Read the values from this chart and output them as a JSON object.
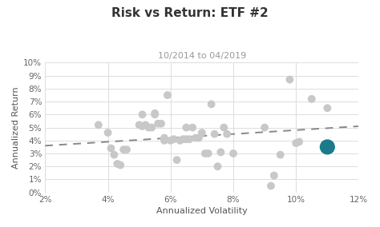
{
  "title": "Risk vs Return: ETF #2",
  "subtitle": "10/2014 to 04/2019",
  "xlabel": "Annualized Volatility",
  "ylabel": "Annualized Return",
  "xlim": [
    0.02,
    0.12
  ],
  "ylim": [
    0.0,
    0.1
  ],
  "xticks": [
    0.02,
    0.04,
    0.06,
    0.08,
    0.1,
    0.12
  ],
  "yticks": [
    0.0,
    0.01,
    0.02,
    0.03,
    0.04,
    0.05,
    0.06,
    0.07,
    0.08,
    0.09,
    0.1
  ],
  "scatter_gray": [
    [
      0.037,
      0.052
    ],
    [
      0.04,
      0.046
    ],
    [
      0.041,
      0.034
    ],
    [
      0.042,
      0.029
    ],
    [
      0.043,
      0.022
    ],
    [
      0.044,
      0.021
    ],
    [
      0.045,
      0.033
    ],
    [
      0.046,
      0.033
    ],
    [
      0.05,
      0.052
    ],
    [
      0.051,
      0.051
    ],
    [
      0.051,
      0.06
    ],
    [
      0.052,
      0.052
    ],
    [
      0.053,
      0.05
    ],
    [
      0.054,
      0.05
    ],
    [
      0.055,
      0.06
    ],
    [
      0.055,
      0.061
    ],
    [
      0.056,
      0.053
    ],
    [
      0.057,
      0.053
    ],
    [
      0.058,
      0.04
    ],
    [
      0.058,
      0.042
    ],
    [
      0.059,
      0.075
    ],
    [
      0.06,
      0.04
    ],
    [
      0.061,
      0.041
    ],
    [
      0.062,
      0.025
    ],
    [
      0.063,
      0.04
    ],
    [
      0.064,
      0.041
    ],
    [
      0.065,
      0.05
    ],
    [
      0.065,
      0.041
    ],
    [
      0.066,
      0.041
    ],
    [
      0.067,
      0.05
    ],
    [
      0.068,
      0.042
    ],
    [
      0.069,
      0.042
    ],
    [
      0.07,
      0.046
    ],
    [
      0.071,
      0.03
    ],
    [
      0.072,
      0.03
    ],
    [
      0.073,
      0.068
    ],
    [
      0.074,
      0.045
    ],
    [
      0.075,
      0.02
    ],
    [
      0.076,
      0.031
    ],
    [
      0.077,
      0.05
    ],
    [
      0.078,
      0.045
    ],
    [
      0.08,
      0.03
    ],
    [
      0.09,
      0.05
    ],
    [
      0.092,
      0.005
    ],
    [
      0.093,
      0.013
    ],
    [
      0.095,
      0.029
    ],
    [
      0.098,
      0.087
    ],
    [
      0.1,
      0.038
    ],
    [
      0.101,
      0.039
    ],
    [
      0.105,
      0.072
    ],
    [
      0.11,
      0.065
    ]
  ],
  "etf_point": [
    0.11,
    0.035
  ],
  "trend_x": [
    0.02,
    0.12
  ],
  "trend_y": [
    0.036,
    0.051
  ],
  "gray_color": "#c8c8c8",
  "etf_color": "#1a7b8a",
  "trend_color": "#888888",
  "bg_color": "#ffffff",
  "grid_color": "#dddddd",
  "title_fontsize": 11,
  "subtitle_fontsize": 8,
  "label_fontsize": 8,
  "tick_fontsize": 7.5
}
